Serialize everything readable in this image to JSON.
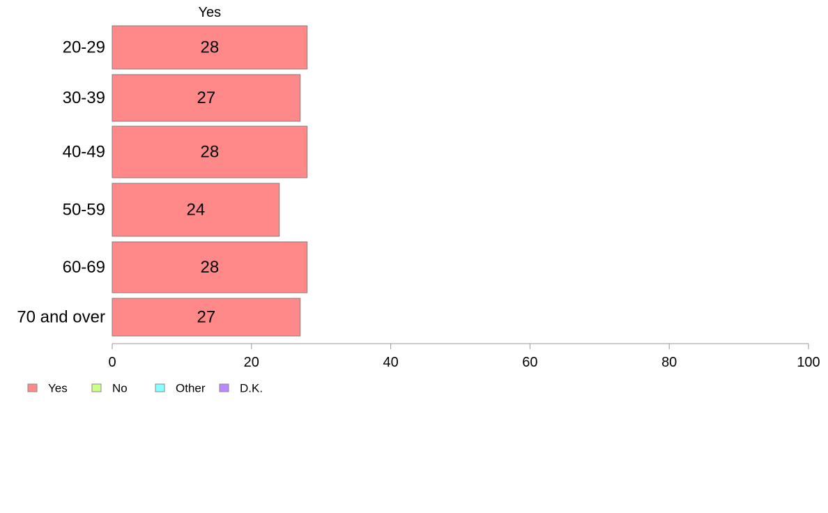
{
  "chart_data": {
    "type": "bar",
    "orientation": "horizontal",
    "stacked": true,
    "header": "Yes",
    "categories": [
      "20-29",
      "30-39",
      "40-49",
      "50-59",
      "60-69",
      "70 and over"
    ],
    "series": [
      {
        "name": "Yes",
        "values": [
          28,
          27,
          28,
          24,
          28,
          27
        ],
        "color": "#ff8888"
      },
      {
        "name": "No",
        "values": [
          0,
          0,
          0,
          0,
          0,
          0
        ],
        "color": "#ccff88"
      },
      {
        "name": "Other",
        "values": [
          0,
          0,
          0,
          0,
          0,
          0
        ],
        "color": "#88ffff"
      },
      {
        "name": "D.K.",
        "values": [
          0,
          0,
          0,
          0,
          0,
          0
        ],
        "color": "#bb88ff"
      }
    ],
    "xlim": [
      0,
      100
    ],
    "xticks": [
      0,
      20,
      40,
      60,
      80,
      100
    ],
    "title": "",
    "xlabel": "",
    "ylabel": "",
    "grid": false,
    "legend_position": "bottom-left"
  }
}
